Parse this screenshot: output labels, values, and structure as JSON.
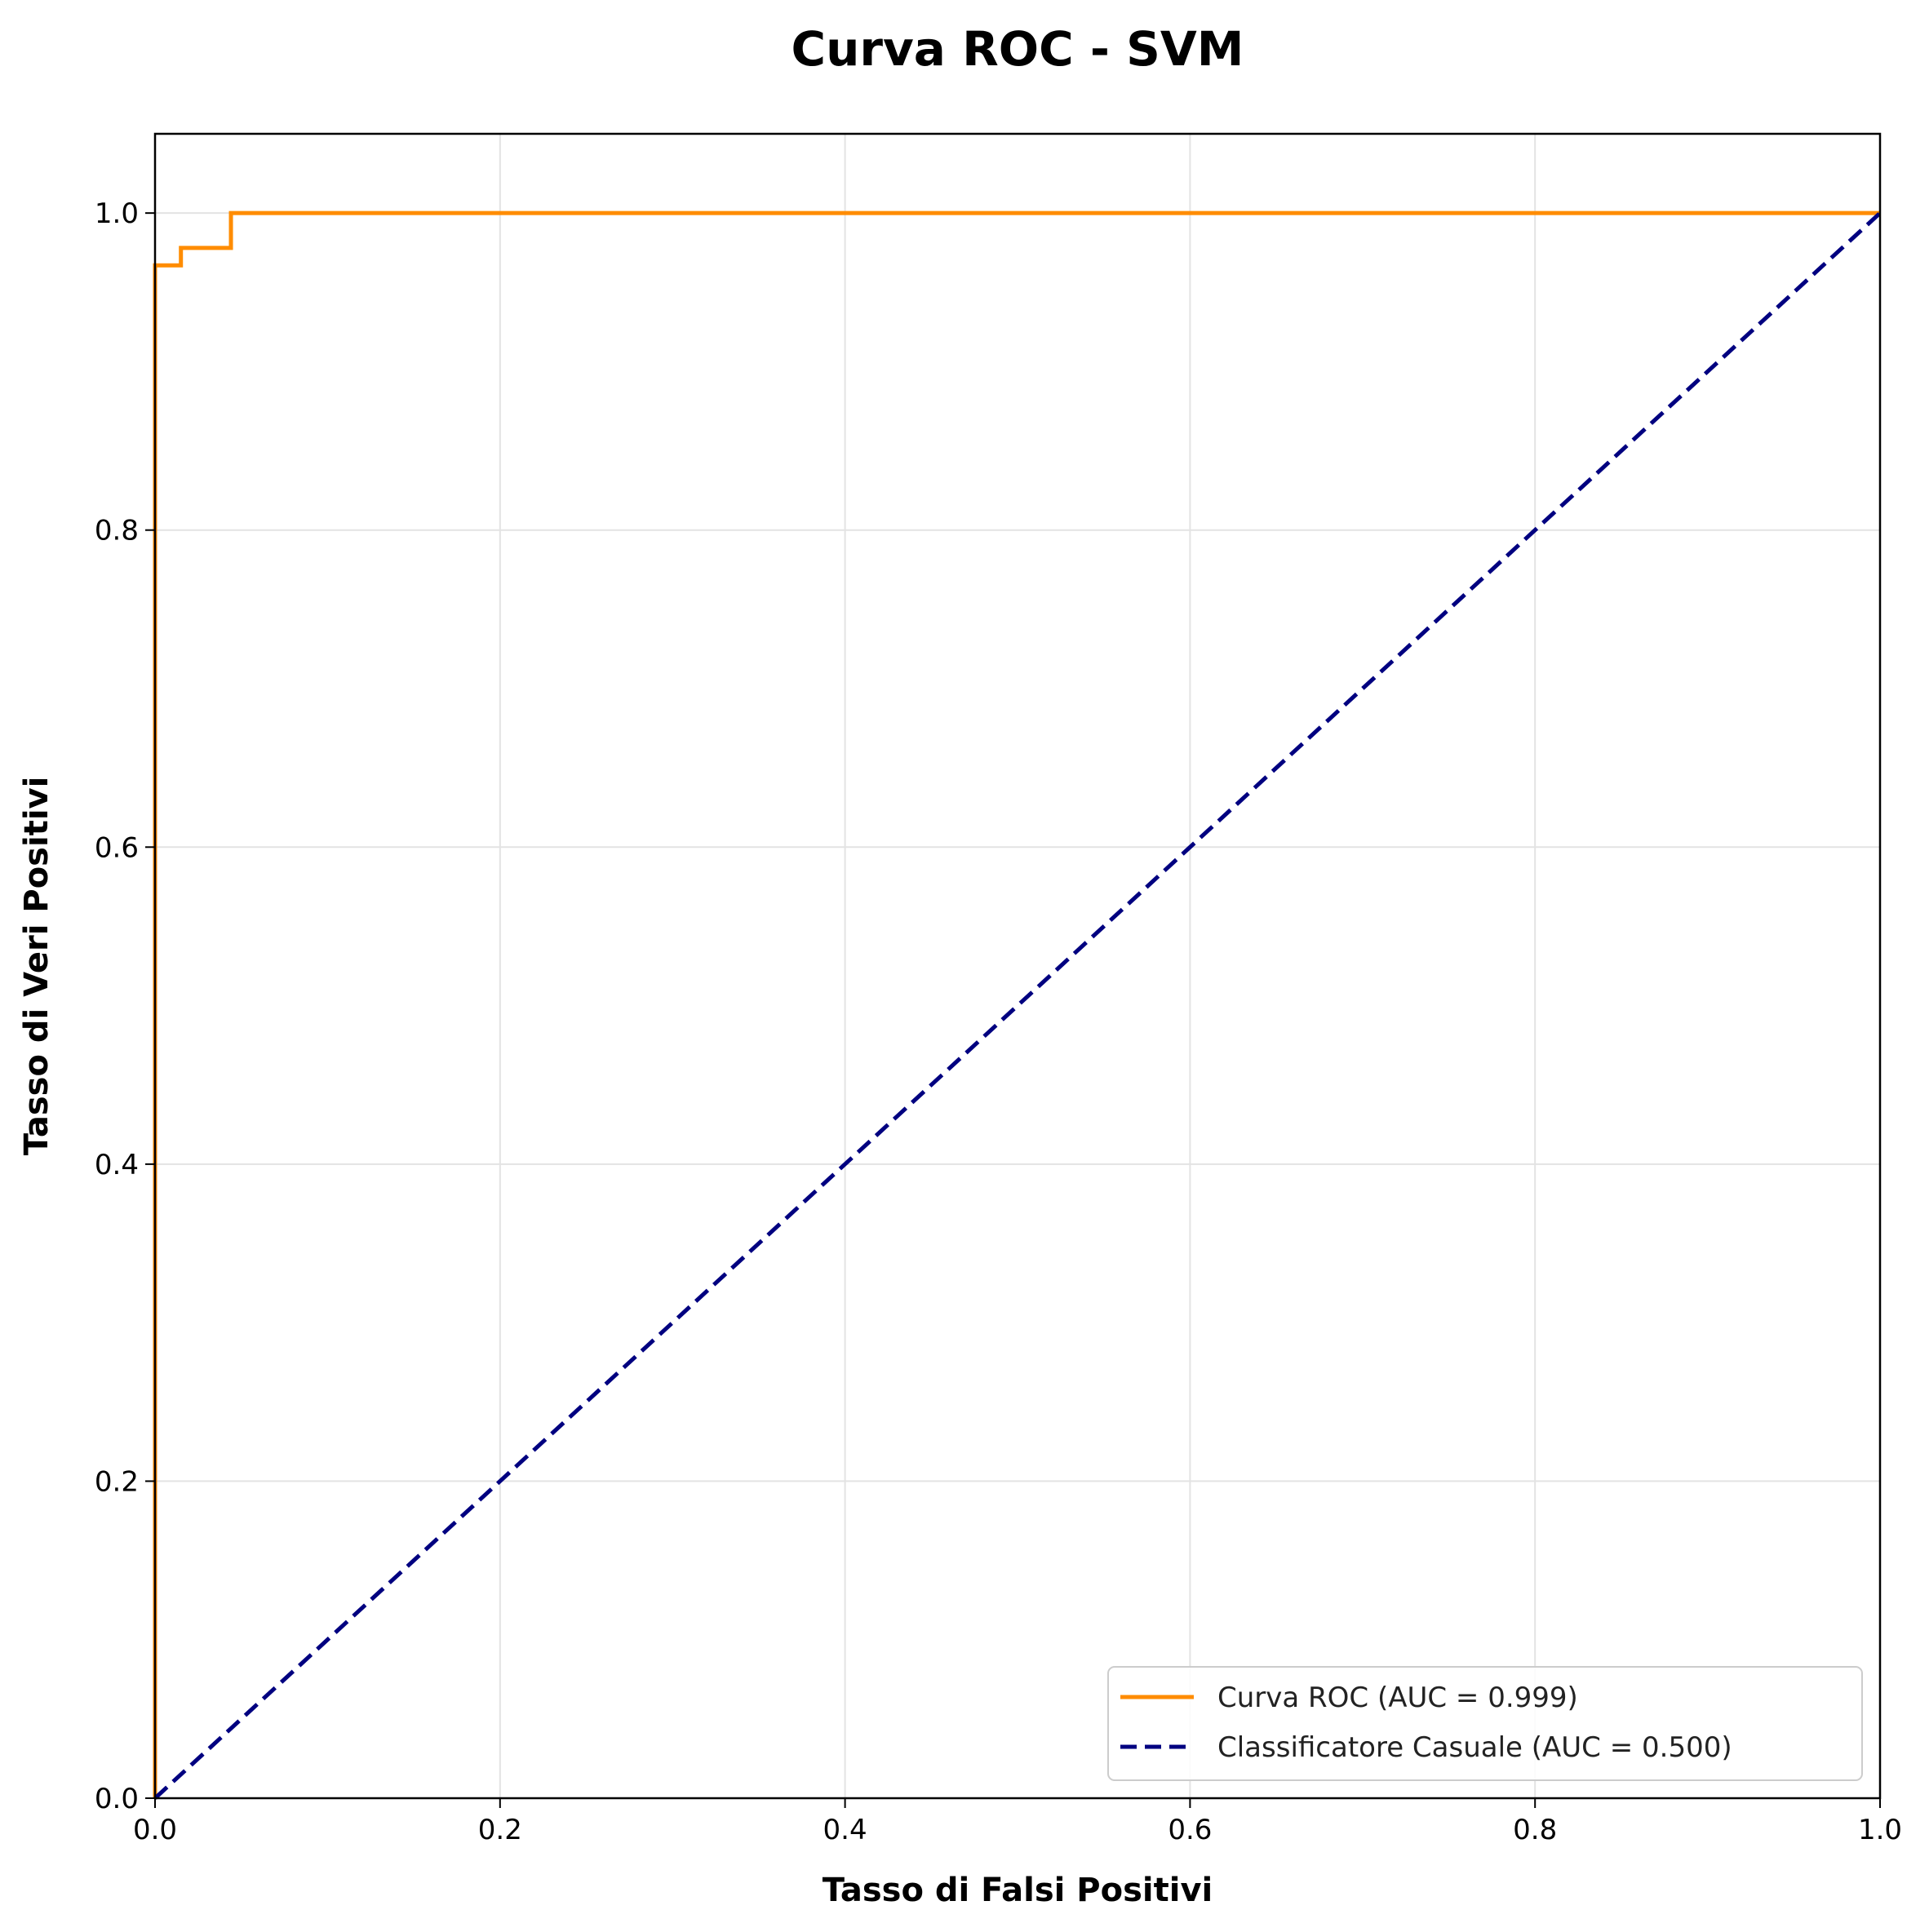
{
  "chart_data": {
    "type": "line",
    "title": "Curva ROC - SVM",
    "xlabel": "Tasso di Falsi Positivi",
    "ylabel": "Tasso di Veri Positivi",
    "xlim": [
      0.0,
      1.0
    ],
    "ylim": [
      0.0,
      1.05
    ],
    "xticks": [
      "0.0",
      "0.2",
      "0.4",
      "0.6",
      "0.8",
      "1.0"
    ],
    "yticks": [
      "0.0",
      "0.2",
      "0.4",
      "0.6",
      "0.8",
      "1.0"
    ],
    "grid": true,
    "legend_position": "bottom-right",
    "series": [
      {
        "name": "Curva ROC (AUC = 0.999)",
        "color": "#ff8c00",
        "style": "solid",
        "x": [
          0.0,
          0.0,
          0.0,
          0.015,
          0.015,
          0.044,
          0.044,
          1.0
        ],
        "y": [
          0.0,
          0.967,
          0.967,
          0.967,
          0.978,
          0.978,
          1.0,
          1.0
        ]
      },
      {
        "name": "Classificatore Casuale (AUC = 0.500)",
        "color": "#000080",
        "style": "dashed",
        "x": [
          0.0,
          1.0
        ],
        "y": [
          0.0,
          1.0
        ]
      }
    ]
  }
}
